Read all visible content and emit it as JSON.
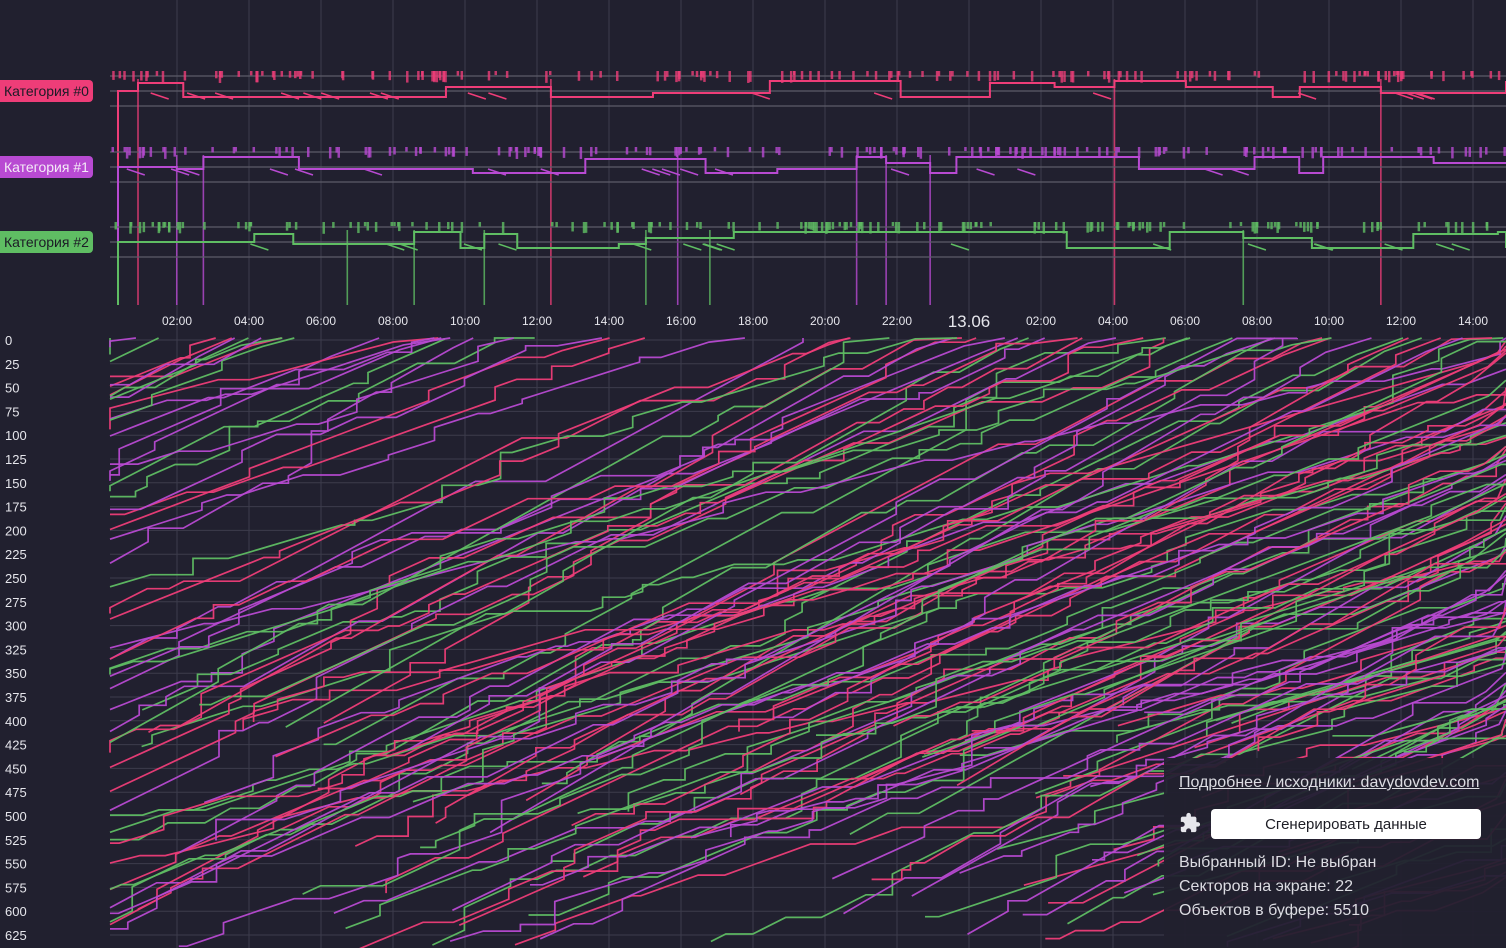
{
  "categories": [
    {
      "label": "Категория #0",
      "color": "#ee3d78"
    },
    {
      "label": "Категория #1",
      "color": "#b84ad2"
    },
    {
      "label": "Категория #2",
      "color": "#5fbd63"
    }
  ],
  "panel": {
    "link_label": "Подробнее / исходники: davydovdev.com",
    "generate_button": "Сгенерировать данные",
    "selected_id": "Выбранный ID: Не выбран",
    "sectors": "Секторов на экране: 22",
    "objects": "Объектов в буфере: 5510"
  },
  "chart_data": {
    "type": "line",
    "x_ticks": [
      "02:00",
      "04:00",
      "06:00",
      "08:00",
      "10:00",
      "12:00",
      "14:00",
      "16:00",
      "18:00",
      "20:00",
      "22:00",
      "13.06",
      "02:00",
      "04:00",
      "06:00",
      "08:00",
      "10:00",
      "12:00",
      "14:00"
    ],
    "y_ticks": [
      0,
      25,
      50,
      75,
      100,
      125,
      150,
      175,
      200,
      225,
      250,
      275,
      300,
      325,
      350,
      375,
      400,
      425,
      450,
      475,
      500,
      525,
      550,
      575,
      600,
      625
    ],
    "ylim": [
      0,
      635
    ],
    "series_colors": [
      "#ee3d78",
      "#b84ad2",
      "#5fbd63"
    ],
    "grid": true
  }
}
